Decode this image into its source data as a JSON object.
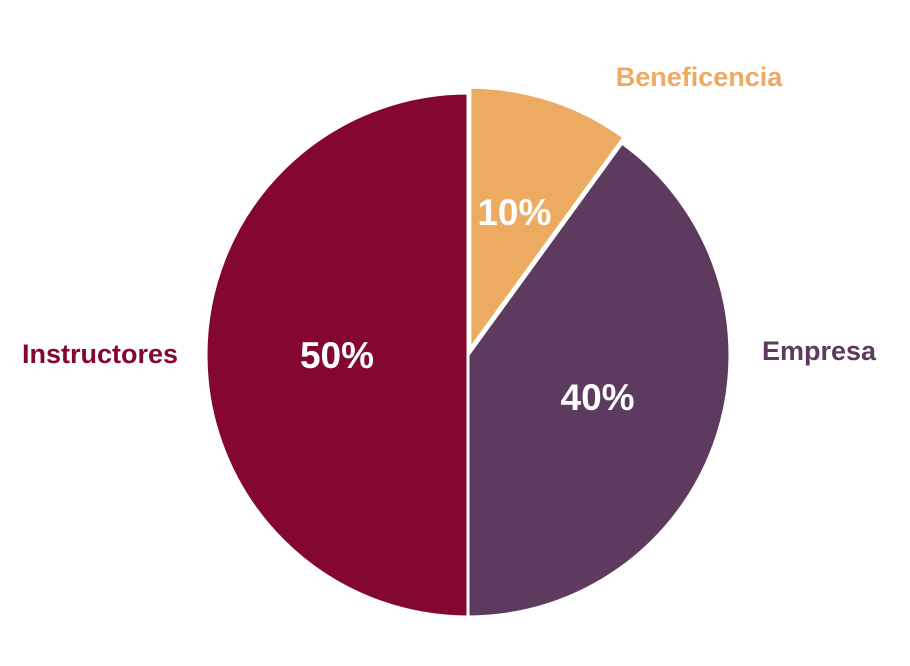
{
  "chart_data": {
    "type": "pie",
    "title": "",
    "slices": [
      {
        "label": "Beneficencia",
        "value": 10,
        "value_label": "10%",
        "color": "#ECAB60"
      },
      {
        "label": "Empresa",
        "value": 40,
        "value_label": "40%",
        "color": "#5C3B5E"
      },
      {
        "label": "Instructores",
        "value": 50,
        "value_label": "50%",
        "color": "#830731"
      }
    ],
    "start_angle": "12 o'clock",
    "direction": "clockwise",
    "legend": "none"
  }
}
